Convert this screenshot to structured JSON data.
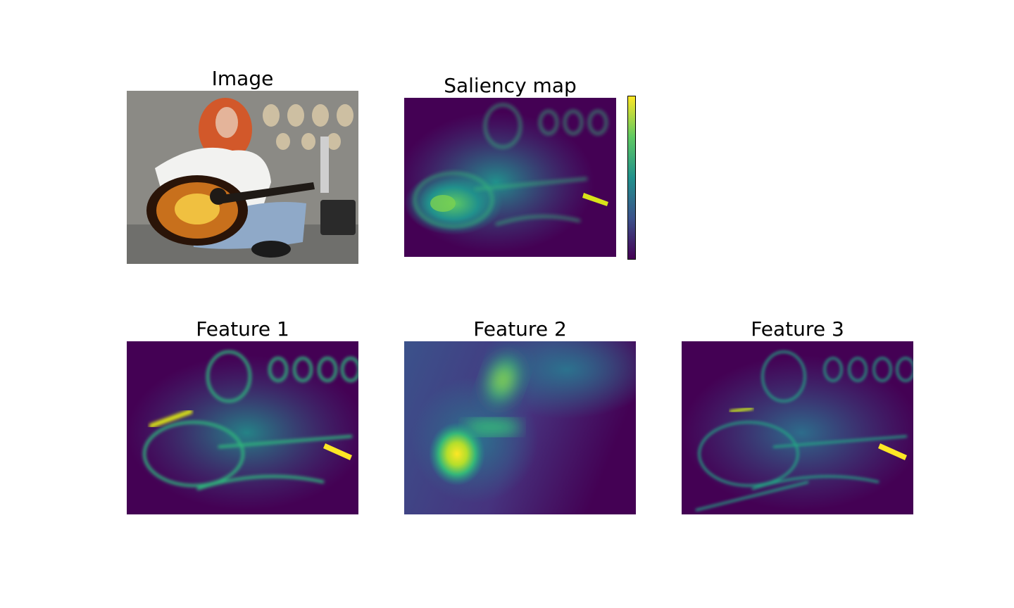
{
  "figure": {
    "panels": [
      {
        "id": "image",
        "title": "Image",
        "kind": "photo"
      },
      {
        "id": "saliency",
        "title": "Saliency map",
        "kind": "heatmap"
      },
      {
        "id": "feature1",
        "title": "Feature 1",
        "kind": "heatmap"
      },
      {
        "id": "feature2",
        "title": "Feature 2",
        "kind": "heatmap"
      },
      {
        "id": "feature3",
        "title": "Feature 3",
        "kind": "heatmap"
      }
    ],
    "colormap": {
      "name": "viridis",
      "stops": [
        "#440154",
        "#3b528b",
        "#21918c",
        "#5ec962",
        "#fde725"
      ]
    },
    "photo_colors": {
      "wall": "#8b8a85",
      "pavement": "#6f6f6c",
      "hair": "#d2582a",
      "skin": "#e4b49a",
      "shirt": "#f2f2f0",
      "jeans": "#8fa9c8",
      "guitar_outer": "#2a1408",
      "guitar_mid": "#c8701c",
      "guitar_center": "#f0c040",
      "neck": "#1f1a16",
      "case": "#2a2a2a"
    }
  }
}
